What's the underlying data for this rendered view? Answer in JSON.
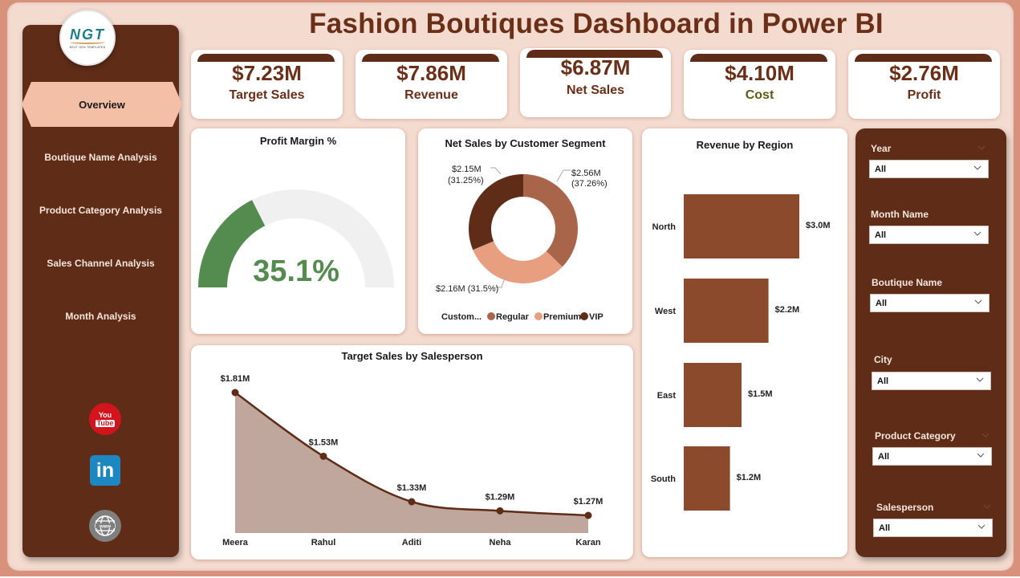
{
  "header": {
    "title": "Fashion Boutiques Dashboard in Power BI"
  },
  "logo": {
    "text": "NGT",
    "subtext": "NEXT GEN TEMPLATES"
  },
  "nav": {
    "items": [
      {
        "label": "Overview",
        "active": true
      },
      {
        "label": "Boutique Name Analysis"
      },
      {
        "label": "Product Category Analysis"
      },
      {
        "label": "Sales Channel Analysis"
      },
      {
        "label": "Month Analysis"
      }
    ],
    "social": [
      {
        "icon": "youtube-icon",
        "text_top": "You",
        "text_bottom": "Tube"
      },
      {
        "icon": "linkedin-icon",
        "text": "in"
      },
      {
        "icon": "website-globe-icon",
        "text": "www"
      }
    ]
  },
  "kpis": [
    {
      "value": "$7.23M",
      "label": "Target Sales",
      "label_color": "#6B2E17"
    },
    {
      "value": "$7.86M",
      "label": "Revenue",
      "label_color": "#6B2E17"
    },
    {
      "value": "$6.87M",
      "label": "Net Sales",
      "label_color": "#6B2E17"
    },
    {
      "value": "$4.10M",
      "label": "Cost",
      "label_color": "#5E5A12"
    },
    {
      "value": "$2.76M",
      "label": "Profit",
      "label_color": "#6B2E17"
    }
  ],
  "gauge": {
    "title": "Profit Margin %",
    "value_label": "35.1%",
    "value": 35.1,
    "max": 100,
    "fill_color": "#548C4F",
    "track_color": "#F1F0F0"
  },
  "donut": {
    "title": "Net Sales by Customer Segment",
    "legend_title": "Custom...",
    "segments": [
      {
        "name": "Regular",
        "value": 2.56,
        "label": "$2.56M",
        "pct": "(37.26%)",
        "color": "#A8654A"
      },
      {
        "name": "Premium",
        "value": 2.16,
        "label": "$2.16M (31.5%)",
        "pct": "",
        "color": "#E89F80"
      },
      {
        "name": "VIP",
        "value": 2.15,
        "label": "$2.15M",
        "pct": "(31.25%)",
        "color": "#5E2C17"
      }
    ]
  },
  "region": {
    "title": "Revenue by Region",
    "bars": [
      {
        "name": "North",
        "value": 3.0,
        "label": "$3.0M"
      },
      {
        "name": "West",
        "value": 2.2,
        "label": "$2.2M"
      },
      {
        "name": "East",
        "value": 1.5,
        "label": "$1.5M"
      },
      {
        "name": "South",
        "value": 1.2,
        "label": "$1.2M"
      }
    ],
    "bar_color": "#8B4A2B"
  },
  "salesperson": {
    "title": "Target Sales by Salesperson",
    "points": [
      {
        "name": "Meera",
        "value": 1.81,
        "label": "$1.81M"
      },
      {
        "name": "Rahul",
        "value": 1.53,
        "label": "$1.53M"
      },
      {
        "name": "Aditi",
        "value": 1.33,
        "label": "$1.33M"
      },
      {
        "name": "Neha",
        "value": 1.29,
        "label": "$1.29M"
      },
      {
        "name": "Karan",
        "value": 1.27,
        "label": "$1.27M"
      }
    ],
    "line_color": "#5E2C17",
    "area_color": "#BFA79E"
  },
  "filters": [
    {
      "label": "Year",
      "value": "All"
    },
    {
      "label": "Month Name",
      "value": "All"
    },
    {
      "label": "Boutique Name",
      "value": "All"
    },
    {
      "label": "City",
      "value": "All"
    },
    {
      "label": "Product Category",
      "value": "All"
    },
    {
      "label": "Salesperson",
      "value": "All"
    }
  ],
  "chart_data": [
    {
      "type": "gauge",
      "title": "Profit Margin %",
      "value": 35.1,
      "unit": "%",
      "range": [
        0,
        100
      ]
    },
    {
      "type": "pie",
      "subtype": "donut",
      "title": "Net Sales by Customer Segment",
      "legend_title": "Custom...",
      "legend_position": "bottom",
      "categories": [
        "Regular",
        "Premium",
        "VIP"
      ],
      "values": [
        2.56,
        2.16,
        2.15
      ],
      "percentages": [
        37.26,
        31.5,
        31.25
      ],
      "unit": "$M"
    },
    {
      "type": "bar",
      "orientation": "horizontal",
      "title": "Revenue by Region",
      "categories": [
        "North",
        "West",
        "East",
        "South"
      ],
      "values": [
        3.0,
        2.2,
        1.5,
        1.2
      ],
      "unit": "$M",
      "grid": false
    },
    {
      "type": "area",
      "title": "Target Sales by Salesperson",
      "categories": [
        "Meera",
        "Rahul",
        "Aditi",
        "Neha",
        "Karan"
      ],
      "values": [
        1.81,
        1.53,
        1.33,
        1.29,
        1.27
      ],
      "unit": "$M",
      "grid": false
    }
  ]
}
